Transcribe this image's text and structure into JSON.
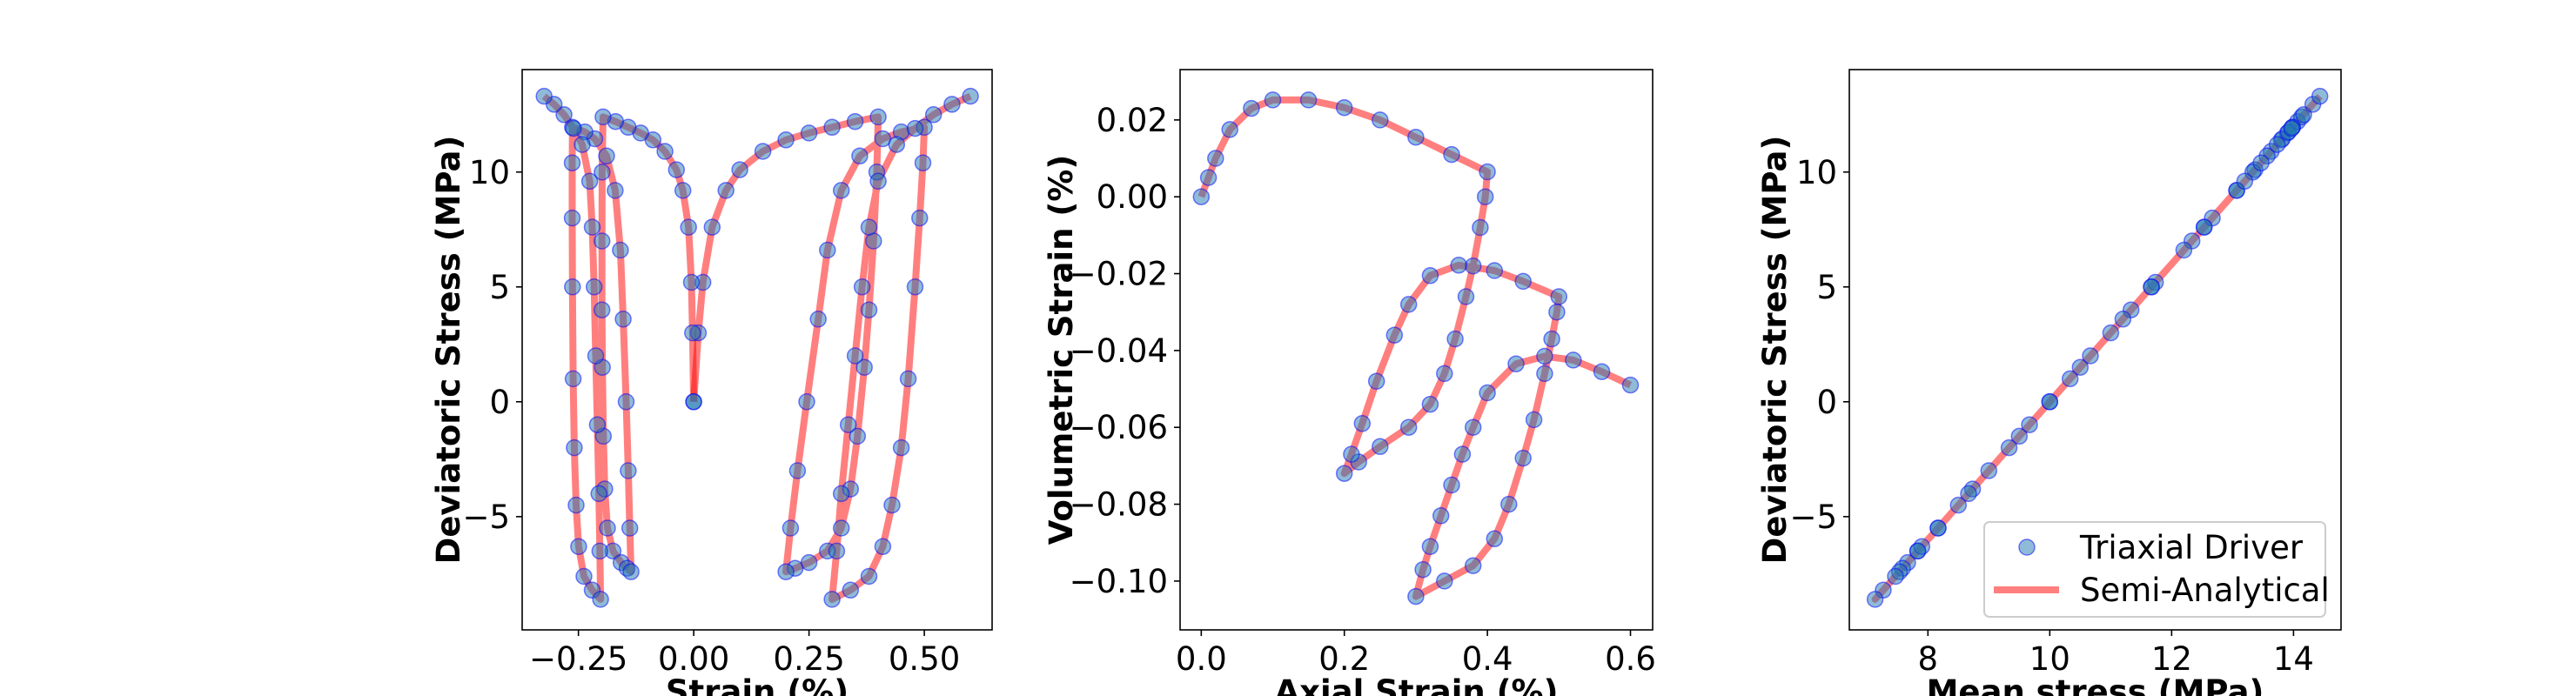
{
  "chart_data": [
    {
      "type": "scatter",
      "xlabel": "Strain (%)",
      "ylabel": "Deviatoric Stress (MPa)",
      "xlim": [
        -0.372,
        0.647
      ],
      "ylim": [
        -9.93,
        14.46
      ],
      "xticks": [
        {
          "v": -0.25,
          "label": "−0.25"
        },
        {
          "v": 0.0,
          "label": "0.00"
        },
        {
          "v": 0.25,
          "label": "0.25"
        },
        {
          "v": 0.5,
          "label": "0.50"
        }
      ],
      "yticks": [
        {
          "v": -5,
          "label": "−5"
        },
        {
          "v": 0,
          "label": "0"
        },
        {
          "v": 5,
          "label": "5"
        },
        {
          "v": 10,
          "label": "10"
        }
      ],
      "grid": false,
      "segments": [
        {
          "x": [
            0,
            0.01,
            0.02,
            0.04,
            0.07,
            0.1,
            0.15,
            0.2,
            0.25,
            0.3,
            0.35,
            0.4,
            0.397,
            0.39,
            0.38,
            0.37,
            0.355,
            0.34,
            0.32,
            0.29,
            0.25,
            0.22,
            0.2,
            0.21,
            0.225,
            0.245,
            0.27,
            0.29,
            0.32,
            0.36,
            0.41,
            0.45,
            0.5,
            0.497,
            0.49,
            0.48,
            0.465,
            0.45,
            0.43,
            0.41,
            0.38,
            0.34,
            0.3,
            0.31,
            0.32,
            0.335,
            0.35,
            0.365,
            0.38,
            0.4,
            0.44,
            0.48,
            0.52,
            0.56,
            0.6
          ],
          "y": [
            0,
            3.0,
            5.2,
            7.6,
            9.2,
            10.1,
            10.9,
            11.4,
            11.7,
            11.95,
            12.2,
            12.4,
            10.0,
            7.0,
            4.0,
            1.5,
            -1.5,
            -3.8,
            -5.5,
            -6.5,
            -7.0,
            -7.25,
            -7.4,
            -5.5,
            -3.0,
            0.0,
            3.6,
            6.6,
            9.2,
            10.7,
            11.45,
            11.75,
            11.95,
            10.4,
            8.0,
            5.0,
            1.0,
            -2.0,
            -4.5,
            -6.3,
            -7.6,
            -8.2,
            -8.6,
            -6.5,
            -4.0,
            -1.0,
            2.0,
            5.0,
            7.6,
            9.6,
            11.2,
            11.9,
            12.5,
            12.95,
            13.3
          ]
        },
        {
          "x": [
            0,
            -0.0025,
            -0.005,
            -0.01125,
            -0.0235,
            -0.0374,
            -0.0624,
            -0.0884,
            -0.115,
            -0.14225,
            -0.1695,
            -0.19675,
            -0.1985,
            -0.199,
            -0.199,
            -0.198,
            -0.196,
            -0.193,
            -0.187,
            -0.175,
            -0.1575,
            -0.1445,
            -0.136,
            -0.1385,
            -0.142,
            -0.1465,
            -0.153,
            -0.159,
            -0.17025,
            -0.1889,
            -0.2146,
            -0.236,
            -0.263,
            -0.2635,
            -0.2635,
            -0.263,
            -0.2615,
            -0.259,
            -0.255,
            -0.2495,
            -0.238,
            -0.22,
            -0.202,
            -0.2035,
            -0.2055,
            -0.209,
            -0.2125,
            -0.216,
            -0.22,
            -0.2255,
            -0.24175,
            -0.26075,
            -0.28125,
            -0.30275,
            -0.3245
          ],
          "y": [
            0,
            3.0,
            5.2,
            7.6,
            9.2,
            10.1,
            10.9,
            11.4,
            11.7,
            11.95,
            12.2,
            12.4,
            10.0,
            7.0,
            4.0,
            1.5,
            -1.5,
            -3.8,
            -5.5,
            -6.5,
            -7.0,
            -7.25,
            -7.4,
            -5.5,
            -3.0,
            0.0,
            3.6,
            6.6,
            9.2,
            10.7,
            11.45,
            11.75,
            11.95,
            10.4,
            8.0,
            5.0,
            1.0,
            -2.0,
            -4.5,
            -6.3,
            -7.6,
            -8.2,
            -8.6,
            -6.5,
            -4.0,
            -1.0,
            2.0,
            5.0,
            7.6,
            9.6,
            11.2,
            11.9,
            12.5,
            12.95,
            13.3
          ]
        }
      ]
    },
    {
      "type": "scatter",
      "xlabel": "Axial Strain (%)",
      "ylabel": "Volumetric Strain (%)",
      "xlim": [
        -0.0296,
        0.631
      ],
      "ylim": [
        -0.1127,
        0.0331
      ],
      "xticks": [
        {
          "v": 0.0,
          "label": "0.0"
        },
        {
          "v": 0.2,
          "label": "0.2"
        },
        {
          "v": 0.4,
          "label": "0.4"
        },
        {
          "v": 0.6,
          "label": "0.6"
        }
      ],
      "yticks": [
        {
          "v": -0.1,
          "label": "−0.10"
        },
        {
          "v": -0.08,
          "label": "−0.08"
        },
        {
          "v": -0.06,
          "label": "−0.06"
        },
        {
          "v": -0.04,
          "label": "−0.04"
        },
        {
          "v": -0.02,
          "label": "−0.02"
        },
        {
          "v": 0.0,
          "label": "0.00"
        },
        {
          "v": 0.02,
          "label": "0.02"
        }
      ],
      "grid": false,
      "segments": [
        {
          "x": [
            0,
            0.01,
            0.02,
            0.04,
            0.07,
            0.1,
            0.15,
            0.2,
            0.25,
            0.3,
            0.35,
            0.4,
            0.397,
            0.39,
            0.38,
            0.37,
            0.355,
            0.34,
            0.32,
            0.29,
            0.25,
            0.22,
            0.2,
            0.21,
            0.225,
            0.245,
            0.27,
            0.29,
            0.32,
            0.36,
            0.41,
            0.45,
            0.5,
            0.497,
            0.49,
            0.48,
            0.465,
            0.45,
            0.43,
            0.41,
            0.38,
            0.34,
            0.3,
            0.31,
            0.32,
            0.335,
            0.35,
            0.365,
            0.38,
            0.4,
            0.44,
            0.48,
            0.52,
            0.56,
            0.6
          ],
          "y": [
            0,
            0.005,
            0.01,
            0.0175,
            0.023,
            0.0252,
            0.0252,
            0.0232,
            0.02,
            0.0155,
            0.011,
            0.0065,
            0.0,
            -0.008,
            -0.018,
            -0.026,
            -0.037,
            -0.046,
            -0.054,
            -0.06,
            -0.065,
            -0.069,
            -0.072,
            -0.067,
            -0.059,
            -0.048,
            -0.036,
            -0.028,
            -0.0205,
            -0.0178,
            -0.0192,
            -0.022,
            -0.026,
            -0.03,
            -0.037,
            -0.046,
            -0.058,
            -0.068,
            -0.08,
            -0.089,
            -0.096,
            -0.1,
            -0.104,
            -0.097,
            -0.091,
            -0.083,
            -0.075,
            -0.067,
            -0.06,
            -0.051,
            -0.0435,
            -0.0415,
            -0.0425,
            -0.0455,
            -0.049
          ]
        }
      ]
    },
    {
      "type": "scatter",
      "xlabel": "Mean stress (MPa)",
      "ylabel": "Deviatoric Stress (MPa)",
      "xlim": [
        6.71,
        14.78
      ],
      "ylim": [
        -9.93,
        14.46
      ],
      "xticks": [
        {
          "v": 8,
          "label": "8"
        },
        {
          "v": 10,
          "label": "10"
        },
        {
          "v": 12,
          "label": "12"
        },
        {
          "v": 14,
          "label": "14"
        }
      ],
      "yticks": [
        {
          "v": -5,
          "label": "−5"
        },
        {
          "v": 0,
          "label": "0"
        },
        {
          "v": 5,
          "label": "5"
        },
        {
          "v": 10,
          "label": "10"
        }
      ],
      "grid": false,
      "legend": {
        "placement": "lower-right",
        "entries": [
          "Triaxial Driver",
          "Semi-Analytical"
        ]
      },
      "segments": [
        {
          "x": [
            10,
            11,
            11.733,
            12.533,
            13.067,
            13.367,
            13.633,
            13.8,
            13.9,
            13.983,
            14.067,
            14.133,
            13.333,
            12.333,
            11.333,
            10.5,
            9.5,
            8.733,
            8.167,
            7.833,
            7.667,
            7.583,
            7.533,
            8.167,
            9,
            10,
            11.2,
            12.2,
            13.067,
            13.567,
            13.817,
            13.917,
            13.983,
            13.467,
            12.667,
            11.667,
            10.333,
            9.333,
            8.5,
            7.9,
            7.467,
            7.267,
            7.133,
            7.833,
            8.667,
            9.667,
            10.667,
            11.667,
            12.533,
            13.2,
            13.733,
            13.967,
            14.167,
            14.317,
            14.433
          ],
          "y": [
            0,
            3.0,
            5.2,
            7.6,
            9.2,
            10.1,
            10.9,
            11.4,
            11.7,
            11.95,
            12.2,
            12.4,
            10.0,
            7.0,
            4.0,
            1.5,
            -1.5,
            -3.8,
            -5.5,
            -6.5,
            -7.0,
            -7.25,
            -7.4,
            -5.5,
            -3.0,
            0.0,
            3.6,
            6.6,
            9.2,
            10.7,
            11.45,
            11.75,
            11.95,
            10.4,
            8.0,
            5.0,
            1.0,
            -2.0,
            -4.5,
            -6.3,
            -7.6,
            -8.2,
            -8.6,
            -6.5,
            -4.0,
            -1.0,
            2.0,
            5.0,
            7.6,
            9.6,
            11.2,
            11.9,
            12.5,
            12.95,
            13.3
          ]
        }
      ]
    }
  ],
  "series_style": [
    {
      "name": "Triaxial Driver",
      "kind": "markers",
      "fill": "#1f77b4",
      "fill_opacity": 0.5,
      "edge": "#0000ff"
    },
    {
      "name": "Semi-Analytical",
      "kind": "line",
      "color": "#ff0000",
      "opacity": 0.5
    }
  ],
  "legend": {
    "driver_label": "Triaxial Driver",
    "analytical_label": "Semi-Analytical"
  }
}
